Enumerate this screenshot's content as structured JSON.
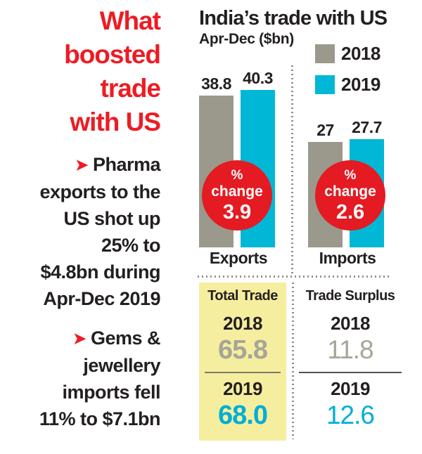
{
  "left_panel": {
    "heading_lines": [
      "What",
      "boosted",
      "trade",
      "with US"
    ],
    "bullets": [
      {
        "arrow": "➤",
        "lines": [
          "Pharma",
          "exports to the",
          "US shot up",
          "25% to",
          "$4.8bn during",
          "Apr-Dec 2019"
        ]
      },
      {
        "arrow": "➤",
        "lines": [
          "Gems &",
          "jewellery",
          "imports fell",
          "11% to $7.1bn"
        ]
      }
    ]
  },
  "chart_data": {
    "type": "bar",
    "title": "India’s trade with US",
    "subtitle": "Apr-Dec ($bn)",
    "unit": "$bn",
    "categories": [
      "Exports",
      "Imports"
    ],
    "series": [
      {
        "name": "2018",
        "color": "#9a998c",
        "values": [
          38.8,
          27
        ]
      },
      {
        "name": "2019",
        "color": "#00b7d6",
        "values": [
          40.3,
          27.7
        ]
      }
    ],
    "annotations": [
      {
        "category": "Exports",
        "symbol": "%",
        "label": "change",
        "value": "3.9"
      },
      {
        "category": "Imports",
        "symbol": "%",
        "label": "change",
        "value": "2.6"
      }
    ],
    "legend_position": "top-right",
    "grid": false,
    "ylim": [
      0,
      45
    ]
  },
  "summary": {
    "total_trade": {
      "header": "Total Trade",
      "rows": [
        {
          "year": "2018",
          "value": "65.8"
        },
        {
          "year": "2019",
          "value": "68.0"
        }
      ]
    },
    "trade_surplus": {
      "header": "Trade Surplus",
      "rows": [
        {
          "year": "2018",
          "value": "11.8"
        },
        {
          "year": "2019",
          "value": "12.6"
        }
      ]
    }
  },
  "colors": {
    "red": "#ed1c24",
    "circle_red": "#e41b22",
    "number_gray": "#a6a597",
    "number_cyan": "#00aed6",
    "yellow_bg": "#f6ee9f",
    "text_dark": "#231f20"
  }
}
